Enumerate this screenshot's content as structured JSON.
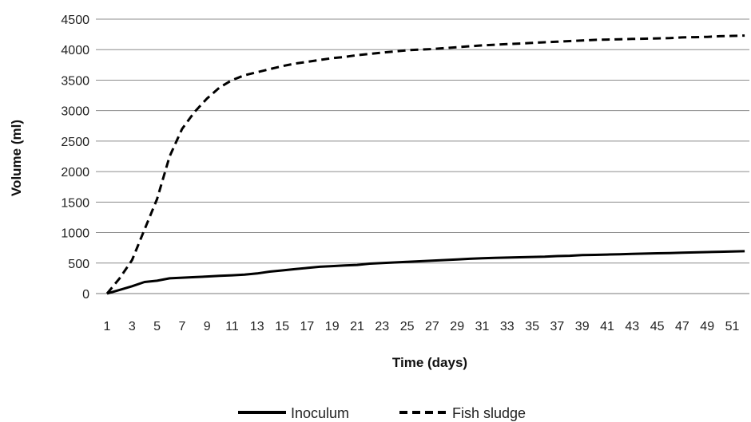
{
  "chart_data": {
    "type": "line",
    "title": "",
    "xlabel": "Time (days)",
    "ylabel": "Volume (ml)",
    "xlim": [
      1,
      52
    ],
    "ylim": [
      0,
      4500
    ],
    "x_ticks": [
      1,
      3,
      5,
      7,
      9,
      11,
      13,
      15,
      17,
      19,
      21,
      23,
      25,
      27,
      29,
      31,
      33,
      35,
      37,
      39,
      41,
      43,
      45,
      47,
      49,
      51
    ],
    "y_ticks": [
      0,
      500,
      1000,
      1500,
      2000,
      2500,
      3000,
      3500,
      4000,
      4500
    ],
    "grid": "horizontal",
    "legend_position": "bottom",
    "x": [
      1,
      2,
      3,
      4,
      5,
      6,
      7,
      8,
      9,
      10,
      11,
      12,
      13,
      14,
      15,
      16,
      17,
      18,
      19,
      20,
      21,
      22,
      23,
      24,
      25,
      26,
      27,
      28,
      29,
      30,
      31,
      32,
      33,
      34,
      35,
      36,
      37,
      38,
      39,
      40,
      41,
      42,
      43,
      44,
      45,
      46,
      47,
      48,
      49,
      50,
      51,
      52
    ],
    "series": [
      {
        "name": "Inoculum",
        "style": "solid",
        "color": "#000000",
        "values": [
          0,
          60,
          120,
          190,
          210,
          250,
          260,
          270,
          280,
          290,
          300,
          310,
          330,
          360,
          380,
          400,
          420,
          440,
          450,
          460,
          470,
          490,
          500,
          510,
          520,
          530,
          540,
          550,
          560,
          570,
          580,
          585,
          590,
          595,
          600,
          605,
          615,
          620,
          630,
          635,
          640,
          645,
          650,
          655,
          660,
          665,
          670,
          675,
          680,
          685,
          690,
          695
        ]
      },
      {
        "name": "Fish sludge",
        "style": "dashed",
        "color": "#000000",
        "values": [
          0,
          250,
          550,
          1050,
          1550,
          2250,
          2700,
          2980,
          3200,
          3380,
          3500,
          3580,
          3630,
          3680,
          3730,
          3770,
          3800,
          3830,
          3860,
          3880,
          3910,
          3930,
          3950,
          3970,
          3990,
          4000,
          4010,
          4025,
          4040,
          4055,
          4070,
          4080,
          4090,
          4100,
          4110,
          4120,
          4130,
          4140,
          4150,
          4160,
          4165,
          4170,
          4175,
          4180,
          4185,
          4190,
          4200,
          4205,
          4210,
          4220,
          4225,
          4230
        ]
      }
    ]
  }
}
